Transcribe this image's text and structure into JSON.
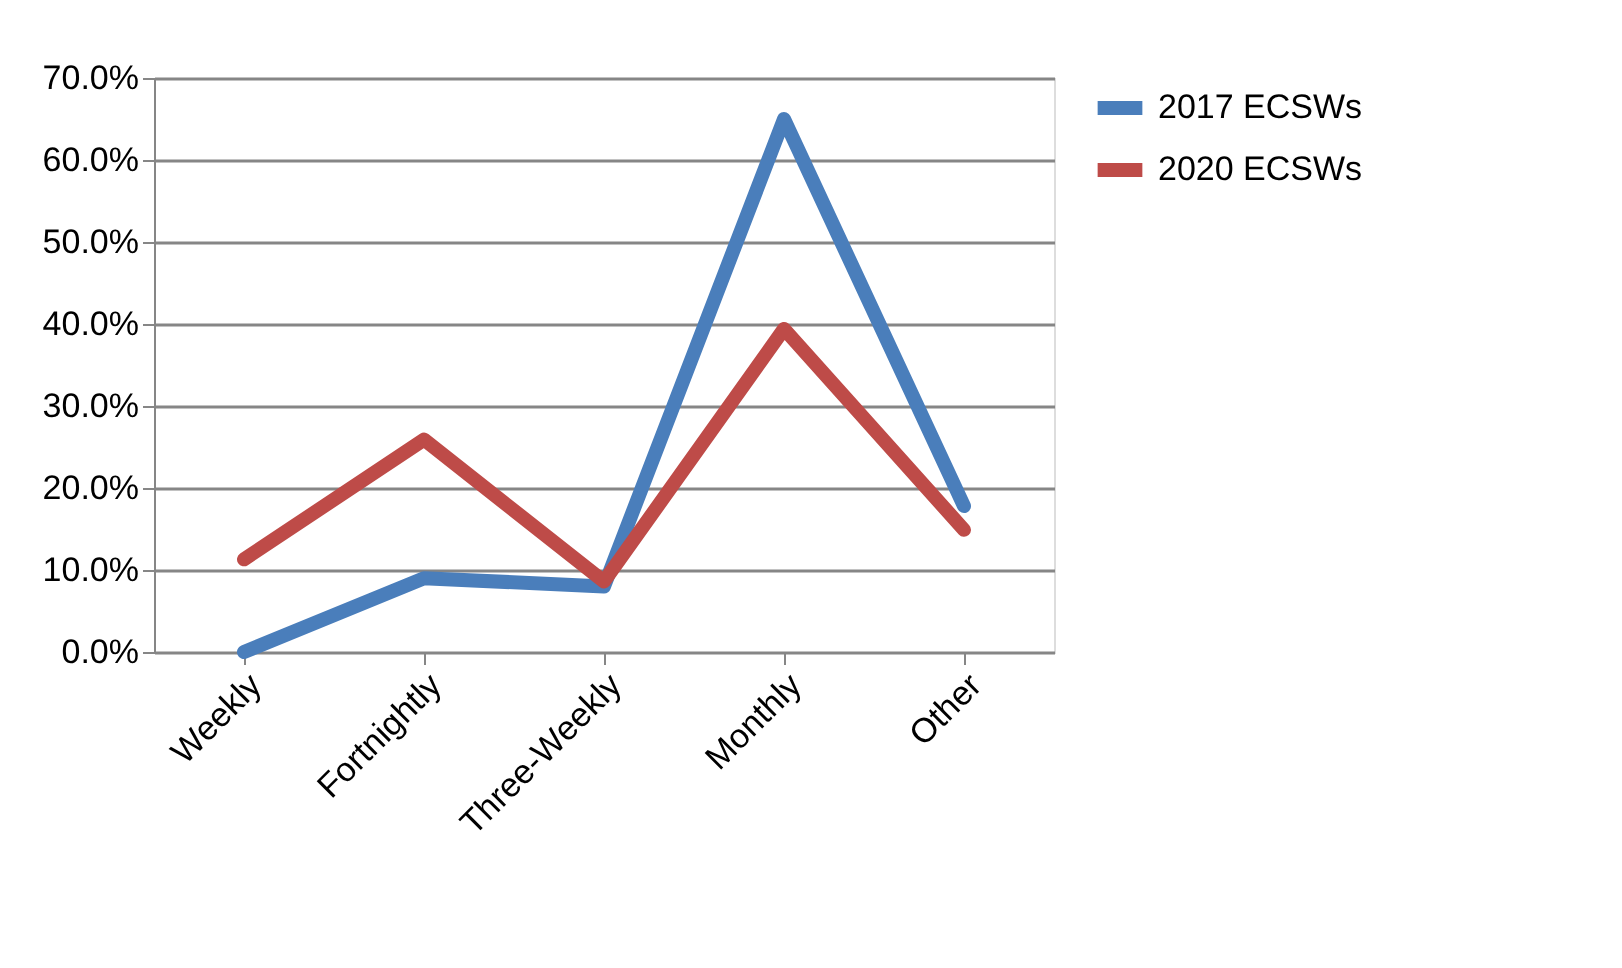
{
  "chart_data": {
    "type": "line",
    "categories": [
      "Weekly",
      "Fortnightly",
      "Three-Weekly",
      "Monthly",
      "Other"
    ],
    "series": [
      {
        "name": "2017 ECSWs",
        "color": "#4a7ebb",
        "values": [
          0.0,
          9.0,
          8.0,
          65.0,
          17.8
        ]
      },
      {
        "name": "2020 ECSWs",
        "color": "#be4b48",
        "values": [
          11.3,
          25.9,
          8.6,
          39.4,
          14.9
        ]
      }
    ],
    "ylim": [
      0,
      70
    ],
    "yticks": [
      {
        "value": 0,
        "label": "0.0%"
      },
      {
        "value": 10,
        "label": "10.0%"
      },
      {
        "value": 20,
        "label": "20.0%"
      },
      {
        "value": 30,
        "label": "30.0%"
      },
      {
        "value": 40,
        "label": "40.0%"
      },
      {
        "value": 50,
        "label": "50.0%"
      },
      {
        "value": 60,
        "label": "60.0%"
      },
      {
        "value": 70,
        "label": "70.0%"
      }
    ],
    "grid": "y",
    "legend": "right",
    "marker": "none",
    "line_style": "solid"
  }
}
